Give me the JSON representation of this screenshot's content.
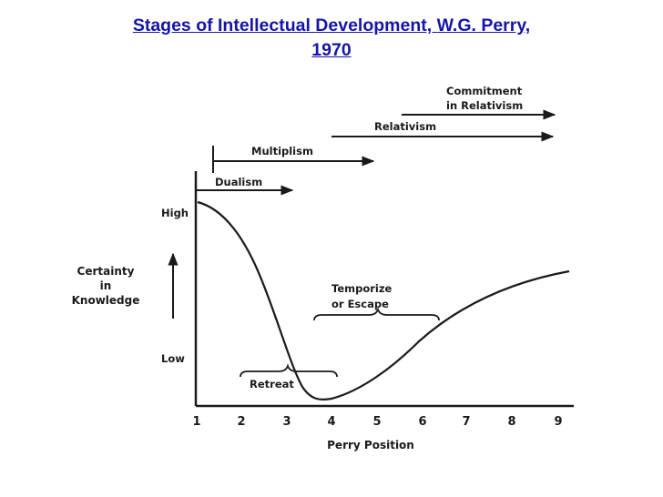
{
  "title": {
    "line1": "Stages of Intellectual  Development, W.G. Perry,",
    "line2": "1970"
  },
  "diagram": {
    "stages": [
      {
        "label": "Dualism",
        "start": 0,
        "end": 2.1
      },
      {
        "label": "Multiplism",
        "start": 1.4,
        "end": 3.9
      },
      {
        "label": "Relativism",
        "start": 3.8,
        "end": 7.9
      },
      {
        "label_line1": "Commitment",
        "label_line2": "in Relativism",
        "start": 5.4,
        "end": 8.6
      }
    ],
    "y_axis": {
      "label_line1": "Certainty",
      "label_line2": "in",
      "label_line3": "Knowledge",
      "high": "High",
      "low": "Low"
    },
    "x_axis": {
      "label": "Perry Position",
      "ticks": [
        "1",
        "2",
        "3",
        "4",
        "5",
        "6",
        "7",
        "8",
        "9"
      ]
    },
    "annotations": {
      "retreat": "Retreat",
      "temporize_line1": "Temporize",
      "temporize_line2": "or Escape"
    }
  }
}
